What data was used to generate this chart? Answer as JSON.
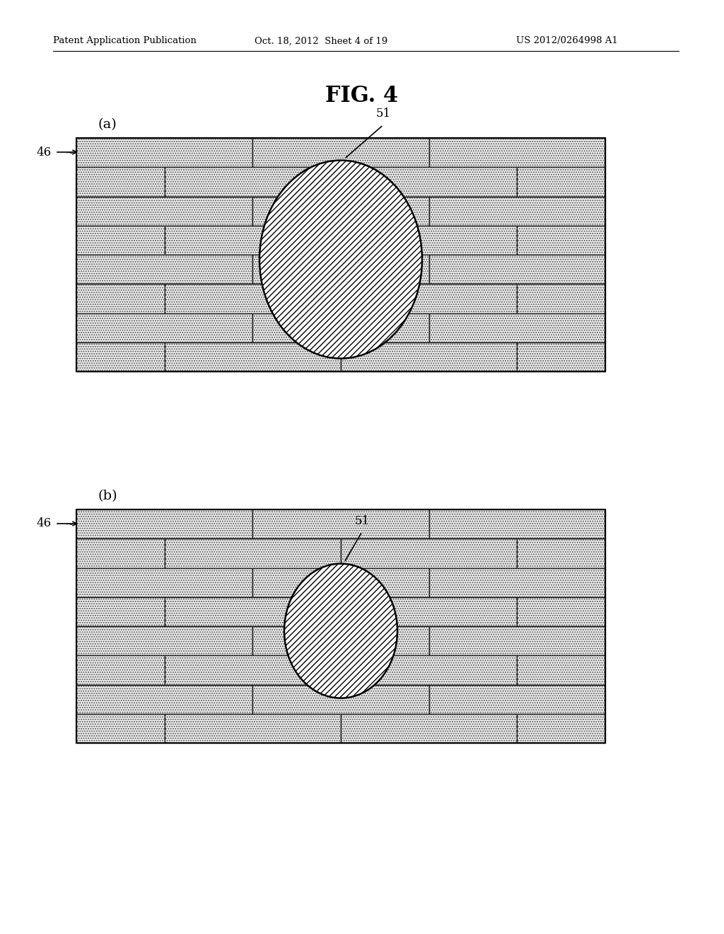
{
  "header_left": "Patent Application Publication",
  "header_mid": "Oct. 18, 2012  Sheet 4 of 19",
  "header_right": "US 2012/0264998 A1",
  "fig_title": "FIG. 4",
  "subfig_a_label": "(a)",
  "subfig_b_label": "(b)",
  "label_46": "46",
  "label_51": "51",
  "bg_color": "#ffffff",
  "brick_face_color": "#f0f0f0",
  "brick_edge_color": "#000000",
  "circle_edge_color": "#000000",
  "panel_edge_color": "#000000"
}
